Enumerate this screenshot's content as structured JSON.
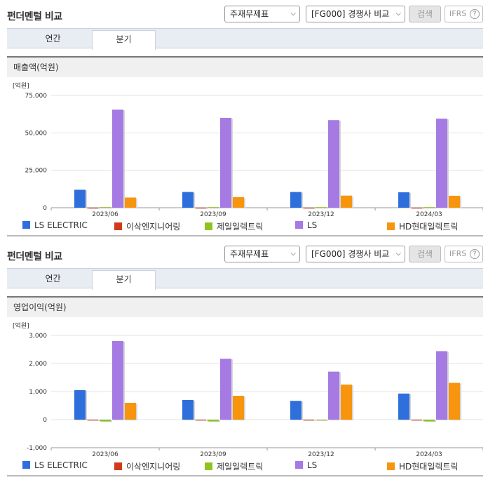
{
  "panels": [
    {
      "title": "펀더멘털 비교",
      "select_statement": "주재무제표",
      "select_peer": "[FG000] 경쟁사 비교",
      "search_label": "검색",
      "ifrs_label": "IFRS",
      "ifrs_help": "?",
      "tabs": [
        "연간",
        "분기"
      ],
      "metric": "매출액(억원)"
    },
    {
      "title": "펀더멘털 비교",
      "select_statement": "주재무제표",
      "select_peer": "[FG000] 경쟁사 비교",
      "search_label": "검색",
      "ifrs_label": "IFRS",
      "ifrs_help": "?",
      "tabs": [
        "연간",
        "분기"
      ],
      "metric": "영업이익(억원)"
    }
  ],
  "legend_colors": [
    "#2f6fdc",
    "#d03a16",
    "#8fc31f",
    "#a57ae3",
    "#f7960e"
  ],
  "chart_data": [
    {
      "type": "bar",
      "unit_label": "[억원]",
      "categories": [
        "2023/06",
        "2023/09",
        "2023/12",
        "2024/03"
      ],
      "ylim": [
        0,
        75000
      ],
      "yticks": [
        0,
        25000,
        50000,
        75000
      ],
      "ytick_labels": [
        "0",
        "25,000",
        "50,000",
        "75,000"
      ],
      "series": [
        {
          "name": "LS ELECTRIC",
          "values": [
            12000,
            10500,
            10500,
            10300
          ]
        },
        {
          "name": "이삭엔지니어링",
          "values": [
            80,
            80,
            80,
            80
          ]
        },
        {
          "name": "제일일렉트릭",
          "values": [
            400,
            400,
            400,
            400
          ]
        },
        {
          "name": "LS",
          "values": [
            65500,
            60000,
            58500,
            59500
          ]
        },
        {
          "name": "HD현대일렉트릭",
          "values": [
            6800,
            7100,
            8100,
            8000
          ]
        }
      ]
    },
    {
      "type": "bar",
      "unit_label": "[억원]",
      "categories": [
        "2023/06",
        "2023/09",
        "2023/12",
        "2024/03"
      ],
      "ylim": [
        -1000,
        3000
      ],
      "yticks": [
        -1000,
        0,
        1000,
        2000,
        3000
      ],
      "ytick_labels": [
        "-1,000",
        "0",
        "1,000",
        "2,000",
        "3,000"
      ],
      "series": [
        {
          "name": "LS ELECTRIC",
          "values": [
            1050,
            700,
            670,
            930
          ]
        },
        {
          "name": "이삭엔지니어링",
          "values": [
            -10,
            -10,
            -5,
            -10
          ]
        },
        {
          "name": "제일일렉트릭",
          "values": [
            -60,
            -60,
            -20,
            -60
          ]
        },
        {
          "name": "LS",
          "values": [
            2800,
            2170,
            1710,
            2440
          ]
        },
        {
          "name": "HD현대일렉트릭",
          "values": [
            600,
            850,
            1250,
            1310
          ]
        }
      ]
    }
  ]
}
